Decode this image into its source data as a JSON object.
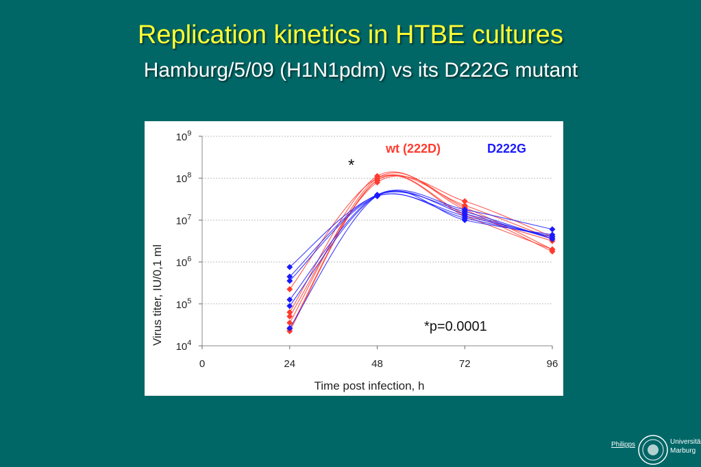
{
  "slide": {
    "title": "Replication kinetics in HTBE cultures",
    "subtitle": "Hamburg/5/09 (H1N1pdm) vs its D222G mutant"
  },
  "logo": {
    "left_text": "Philipps",
    "right_text_1": "Universität",
    "right_text_2": "Marburg"
  },
  "colors": {
    "background": "#006666",
    "title": "#ffff33",
    "wt": "#ff3b2f",
    "d222g": "#1a1aff"
  },
  "chart_data": {
    "type": "line",
    "xlabel": "Time post infection, h",
    "ylabel": "Virus titer, IU/0,1 ml",
    "y_scale": "log10",
    "xlim": [
      0,
      96
    ],
    "ylim_log10": [
      4,
      9
    ],
    "x_ticks": [
      0,
      24,
      48,
      72,
      96
    ],
    "x_tick_labels": [
      "0",
      "24",
      "48",
      "72",
      "96"
    ],
    "y_ticks": [
      4,
      5,
      6,
      7,
      8,
      9
    ],
    "y_tick_base": "10",
    "grid": "horizontal",
    "legend_position": "top-right",
    "legend": [
      "wt (222D)",
      "D222G"
    ],
    "annotations": {
      "star": "*",
      "pvalue": "*p=0.0001"
    },
    "x": [
      24,
      48,
      72,
      96
    ],
    "series": [
      {
        "name": "wt (222D)",
        "group": "wt",
        "values_log10": [
          4.35,
          7.95,
          7.15,
          6.5
        ]
      },
      {
        "name": "wt (222D)",
        "group": "wt",
        "values_log10": [
          4.55,
          8.0,
          7.3,
          6.3
        ]
      },
      {
        "name": "wt (222D)",
        "group": "wt",
        "values_log10": [
          4.7,
          7.9,
          7.45,
          6.6
        ]
      },
      {
        "name": "wt (222D)",
        "group": "wt",
        "values_log10": [
          4.8,
          8.05,
          7.25,
          6.25
        ]
      },
      {
        "name": "wt (222D)",
        "group": "wt",
        "values_log10": [
          5.35,
          8.0,
          7.35,
          6.55
        ]
      },
      {
        "name": "wt (222D)",
        "group": "wt",
        "values_log10": [
          4.4,
          7.95,
          7.1,
          6.3
        ]
      },
      {
        "name": "D222G",
        "group": "d222g",
        "values_log10": [
          4.42,
          7.58,
          7.0,
          6.65
        ]
      },
      {
        "name": "D222G",
        "group": "d222g",
        "values_log10": [
          4.95,
          7.58,
          7.15,
          6.55
        ]
      },
      {
        "name": "D222G",
        "group": "d222g",
        "values_log10": [
          5.1,
          7.6,
          7.25,
          6.78
        ]
      },
      {
        "name": "D222G",
        "group": "d222g",
        "values_log10": [
          5.55,
          7.57,
          7.05,
          6.6
        ]
      },
      {
        "name": "D222G",
        "group": "d222g",
        "values_log10": [
          5.65,
          7.6,
          7.2,
          6.55
        ]
      },
      {
        "name": "D222G",
        "group": "d222g",
        "values_log10": [
          5.88,
          7.58,
          7.1,
          6.6
        ]
      }
    ]
  }
}
